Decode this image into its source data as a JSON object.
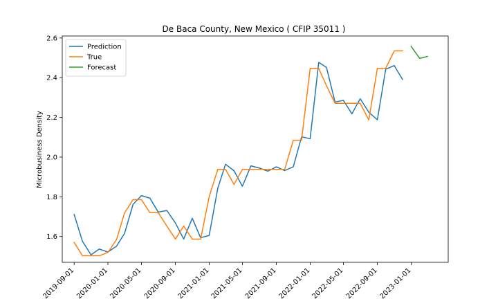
{
  "chart_data": {
    "type": "line",
    "title": "De Baca County, New Mexico ( CFIP 35011 )",
    "xlabel": "",
    "ylabel": "Microbusiness Density",
    "ylim": [
      1.47,
      2.61
    ],
    "xlim": [
      "2019-07-20",
      "2023-05-15"
    ],
    "x_ticks": [
      "2019-09-01",
      "2020-01-01",
      "2020-05-01",
      "2020-09-01",
      "2021-01-01",
      "2021-05-01",
      "2021-09-01",
      "2022-01-01",
      "2022-05-01",
      "2022-09-01",
      "2023-01-01"
    ],
    "y_ticks": [
      1.6,
      1.8,
      2.0,
      2.2,
      2.4,
      2.6
    ],
    "grid": false,
    "legend": "top-left",
    "colors": {
      "prediction": "#1f77b4",
      "true": "#ff7f0e",
      "forecast": "#2ca02c"
    },
    "series": [
      {
        "name": "Prediction",
        "color": "#1f77b4",
        "points": [
          [
            "2019-09-01",
            1.711
          ],
          [
            "2019-10-01",
            1.576
          ],
          [
            "2019-11-01",
            1.508
          ],
          [
            "2019-12-01",
            1.537
          ],
          [
            "2020-01-01",
            1.522
          ],
          [
            "2020-02-01",
            1.551
          ],
          [
            "2020-03-01",
            1.615
          ],
          [
            "2020-04-01",
            1.762
          ],
          [
            "2020-05-01",
            1.806
          ],
          [
            "2020-06-01",
            1.793
          ],
          [
            "2020-07-01",
            1.723
          ],
          [
            "2020-08-01",
            1.731
          ],
          [
            "2020-09-01",
            1.668
          ],
          [
            "2020-10-01",
            1.587
          ],
          [
            "2020-11-01",
            1.692
          ],
          [
            "2020-12-01",
            1.594
          ],
          [
            "2021-01-01",
            1.605
          ],
          [
            "2021-02-01",
            1.842
          ],
          [
            "2021-03-01",
            1.964
          ],
          [
            "2021-04-01",
            1.931
          ],
          [
            "2021-05-01",
            1.853
          ],
          [
            "2021-06-01",
            1.956
          ],
          [
            "2021-07-01",
            1.945
          ],
          [
            "2021-08-01",
            1.929
          ],
          [
            "2021-09-01",
            1.951
          ],
          [
            "2021-10-01",
            1.932
          ],
          [
            "2021-11-01",
            1.951
          ],
          [
            "2021-12-01",
            2.102
          ],
          [
            "2022-01-01",
            2.093
          ],
          [
            "2022-02-01",
            2.477
          ],
          [
            "2022-03-01",
            2.452
          ],
          [
            "2022-04-01",
            2.277
          ],
          [
            "2022-05-01",
            2.286
          ],
          [
            "2022-06-01",
            2.218
          ],
          [
            "2022-07-01",
            2.294
          ],
          [
            "2022-08-01",
            2.226
          ],
          [
            "2022-09-01",
            2.188
          ],
          [
            "2022-10-01",
            2.442
          ],
          [
            "2022-11-01",
            2.461
          ],
          [
            "2022-12-01",
            2.391
          ]
        ]
      },
      {
        "name": "True",
        "color": "#ff7f0e",
        "points": [
          [
            "2019-09-01",
            1.57
          ],
          [
            "2019-10-01",
            1.503
          ],
          [
            "2019-11-01",
            1.503
          ],
          [
            "2019-12-01",
            1.503
          ],
          [
            "2020-01-01",
            1.52
          ],
          [
            "2020-02-01",
            1.584
          ],
          [
            "2020-03-01",
            1.718
          ],
          [
            "2020-04-01",
            1.786
          ],
          [
            "2020-05-01",
            1.786
          ],
          [
            "2020-06-01",
            1.72
          ],
          [
            "2020-07-01",
            1.72
          ],
          [
            "2020-08-01",
            1.653
          ],
          [
            "2020-09-01",
            1.587
          ],
          [
            "2020-10-01",
            1.653
          ],
          [
            "2020-11-01",
            1.587
          ],
          [
            "2020-12-01",
            1.587
          ],
          [
            "2021-01-01",
            1.8
          ],
          [
            "2021-02-01",
            1.938
          ],
          [
            "2021-03-01",
            1.938
          ],
          [
            "2021-04-01",
            1.862
          ],
          [
            "2021-05-01",
            1.938
          ],
          [
            "2021-06-01",
            1.938
          ],
          [
            "2021-07-01",
            1.938
          ],
          [
            "2021-08-01",
            1.938
          ],
          [
            "2021-09-01",
            1.938
          ],
          [
            "2021-10-01",
            1.938
          ],
          [
            "2021-11-01",
            2.085
          ],
          [
            "2021-12-01",
            2.085
          ],
          [
            "2022-01-01",
            2.447
          ],
          [
            "2022-02-01",
            2.447
          ],
          [
            "2022-03-01",
            2.36
          ],
          [
            "2022-04-01",
            2.271
          ],
          [
            "2022-05-01",
            2.271
          ],
          [
            "2022-06-01",
            2.271
          ],
          [
            "2022-07-01",
            2.271
          ],
          [
            "2022-08-01",
            2.187
          ],
          [
            "2022-09-01",
            2.447
          ],
          [
            "2022-10-01",
            2.447
          ],
          [
            "2022-11-01",
            2.535
          ],
          [
            "2022-12-01",
            2.535
          ]
        ]
      },
      {
        "name": "Forecast",
        "color": "#2ca02c",
        "points": [
          [
            "2023-01-01",
            2.558
          ],
          [
            "2023-02-01",
            2.497
          ],
          [
            "2023-03-01",
            2.507
          ]
        ]
      }
    ]
  }
}
